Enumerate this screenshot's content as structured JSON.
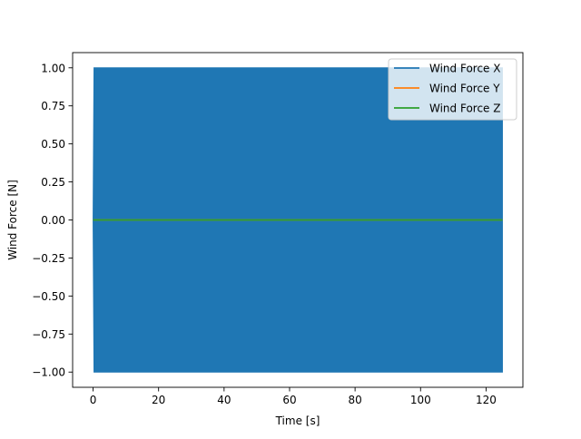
{
  "chart_data": {
    "type": "line",
    "title": "",
    "xlabel": "Time [s]",
    "ylabel": "Wind Force [N]",
    "xlim": [
      -6.25,
      131.25
    ],
    "ylim": [
      -1.1,
      1.1
    ],
    "xticks": [
      0,
      20,
      40,
      60,
      80,
      100,
      120
    ],
    "xtick_labels": [
      "0",
      "20",
      "40",
      "60",
      "80",
      "100",
      "120"
    ],
    "yticks": [
      -1.0,
      -0.75,
      -0.5,
      -0.25,
      0.0,
      0.25,
      0.5,
      0.75,
      1.0
    ],
    "ytick_labels": [
      "−1.00",
      "−0.75",
      "−0.50",
      "−0.25",
      "0.00",
      "0.25",
      "0.50",
      "0.75",
      "1.00"
    ],
    "grid": false,
    "legend_position": "top-right",
    "x_range": [
      0,
      125
    ],
    "series": [
      {
        "name": "Wind Force X",
        "color": "#1f77b4",
        "description_pattern": "rapid oscillation",
        "amplitude": 1.0,
        "offset": 0.0,
        "x_start": 0,
        "x_end": 125,
        "end_value": 0.05
      },
      {
        "name": "Wind Force Y",
        "color": "#ff7f0e",
        "constant_value": 0.0,
        "x_start": 0,
        "x_end": 125
      },
      {
        "name": "Wind Force Z",
        "color": "#2ca02c",
        "constant_value": 0.0,
        "x_start": 0,
        "x_end": 125
      }
    ]
  }
}
